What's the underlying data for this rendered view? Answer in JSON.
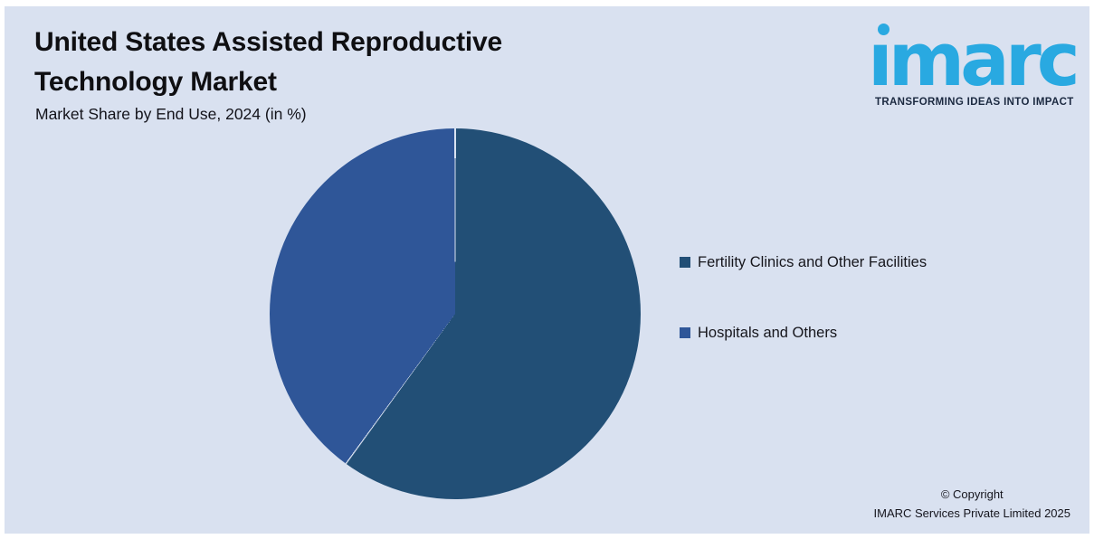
{
  "header": {
    "title_line1": "United States Assisted Reproductive",
    "title_line2": "Technology Market",
    "subtitle": "Market Share by End Use, 2024 (in %)"
  },
  "logo": {
    "brand": "imarc",
    "brand_display": "ımarc",
    "tagline": "TRANSFORMING IDEAS INTO IMPACT",
    "brand_color": "#29A9E1",
    "tagline_color": "#1B2940"
  },
  "chart_data": {
    "type": "pie",
    "title": "United States Assisted Reproductive Technology Market",
    "subtitle": "Market Share by End Use, 2024 (in %)",
    "unit": "%",
    "start_angle_deg": 0,
    "direction": "clockwise",
    "labels_shown": false,
    "legend_position": "right",
    "slices": [
      {
        "label": "Fertility Clinics and Other Facilities",
        "value": 60,
        "color": "#224F76"
      },
      {
        "label": "Hospitals and Others",
        "value": 40,
        "color": "#2F5698"
      }
    ],
    "slice_separator_color": "rgba(217,226,241,0.75)"
  },
  "legend": {
    "items": [
      {
        "label": "Fertility Clinics and Other Facilities",
        "color": "#224F76"
      },
      {
        "label": "Hospitals and Others",
        "color": "#2F5698"
      }
    ]
  },
  "footer": {
    "copyright_line1": "© Copyright",
    "copyright_line2": "IMARC Services Private Limited 2025"
  },
  "colors": {
    "panel_background": "#D9E1F0",
    "page_border": "#FFFFFF"
  }
}
